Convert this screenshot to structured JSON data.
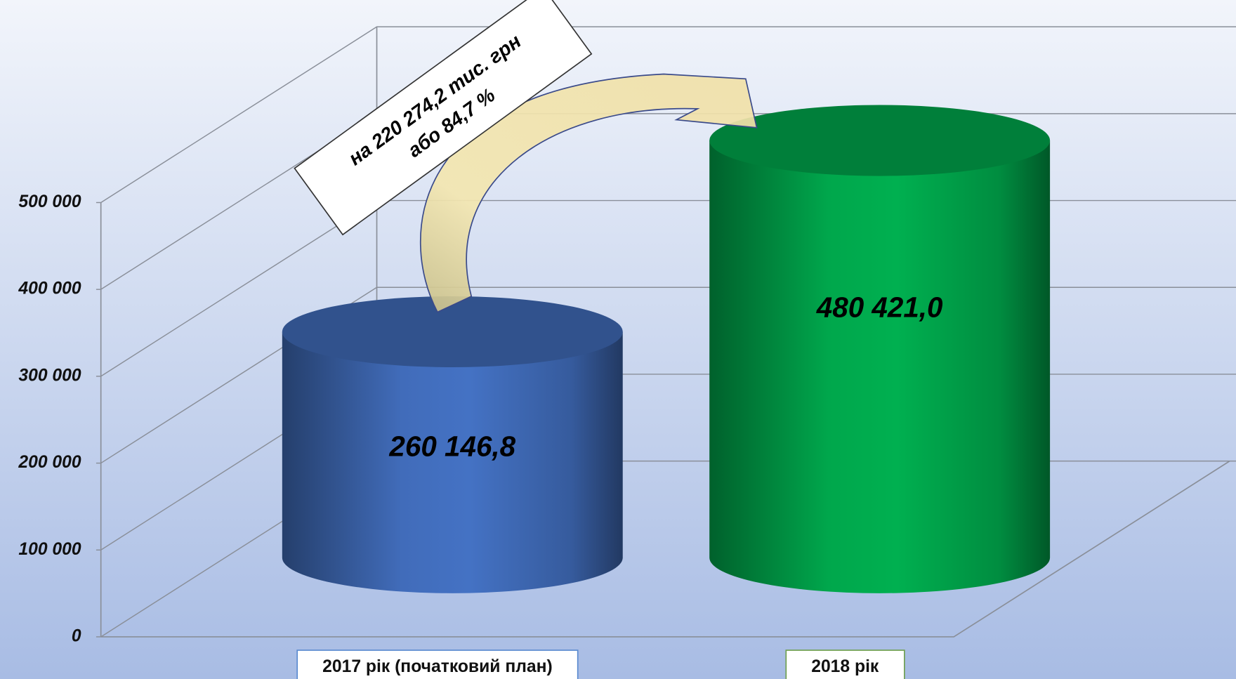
{
  "chart_data": {
    "type": "cylinder",
    "categories": [
      "2017 рік  (початковий план)",
      "2018 рік"
    ],
    "values": [
      260146.8,
      480421.0
    ],
    "value_labels": [
      "260 146,8",
      "480 421,0"
    ],
    "colors": [
      "#4472c4",
      "#00b050"
    ],
    "ylim": [
      0,
      500000
    ],
    "yticks": [
      0,
      {
        "value": 100000,
        "label": "100 000"
      },
      {
        "value": 200000,
        "label": "200 000"
      },
      {
        "value": 300000,
        "label": "300 000"
      },
      {
        "value": 400000,
        "label": "400 000"
      },
      {
        "value": 500000,
        "label": "500 000"
      }
    ],
    "grid": true,
    "annotation": [
      "на 220 274,2 тис. грн",
      "або 84,7 %"
    ]
  }
}
